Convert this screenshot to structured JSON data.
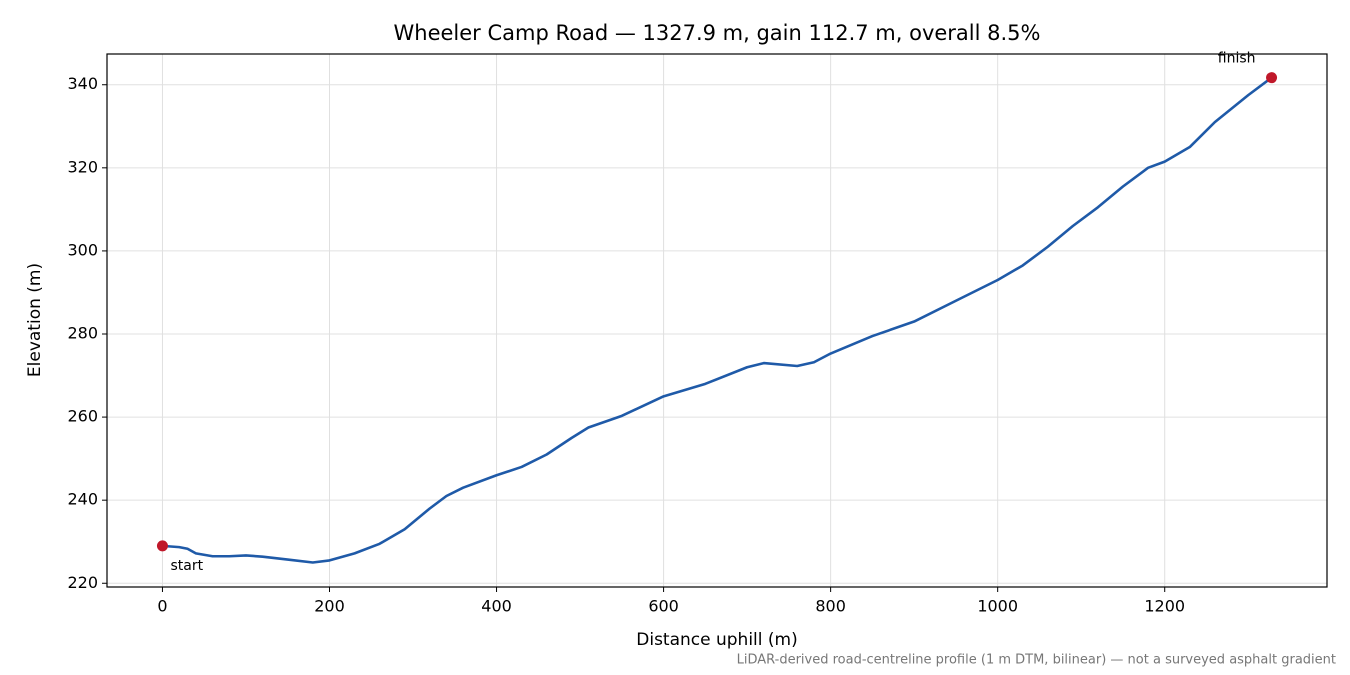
{
  "chart_data": {
    "type": "line",
    "title": "Wheeler Camp Road — 1327.9 m, gain 112.7 m, overall 8.5%",
    "x_label": "Distance uphill (m)",
    "y_label": "Elevation (m)",
    "footnote": "LiDAR-derived road-centreline profile (1 m DTM, bilinear) — not a surveyed asphalt gradient",
    "x": [
      0,
      20,
      30,
      40,
      60,
      80,
      100,
      120,
      150,
      180,
      200,
      230,
      260,
      290,
      320,
      340,
      360,
      400,
      430,
      460,
      490,
      510,
      550,
      600,
      650,
      700,
      720,
      760,
      780,
      800,
      850,
      900,
      950,
      1000,
      1030,
      1060,
      1090,
      1120,
      1150,
      1180,
      1200,
      1230,
      1260,
      1300,
      1327.9
    ],
    "values": [
      229.0,
      228.7,
      228.3,
      227.2,
      226.5,
      226.5,
      226.7,
      226.4,
      225.7,
      225.0,
      225.5,
      227.2,
      229.5,
      233.0,
      238.0,
      241.0,
      243.0,
      246.0,
      248.0,
      251.0,
      255.0,
      257.5,
      260.3,
      265.0,
      268.0,
      272.0,
      273.0,
      272.3,
      273.2,
      275.3,
      279.5,
      283.0,
      288.0,
      293.0,
      296.5,
      301.0,
      306.0,
      310.5,
      315.5,
      320.0,
      321.5,
      325.0,
      331.0,
      337.5,
      341.7
    ],
    "color": "#1f5aa8",
    "annotations": [
      {
        "text": "start",
        "x": 0,
        "y": 229.0
      },
      {
        "text": "finish",
        "x": 1327.9,
        "y": 341.7
      }
    ],
    "marker_color": "#c0182a",
    "xlim": [
      -66.4,
      1394.3
    ],
    "ylim": [
      219.1,
      347.4
    ],
    "xticks": [
      0,
      200,
      400,
      600,
      800,
      1000,
      1200
    ],
    "yticks": [
      220,
      240,
      260,
      280,
      300,
      320,
      340
    ],
    "grid": true
  }
}
